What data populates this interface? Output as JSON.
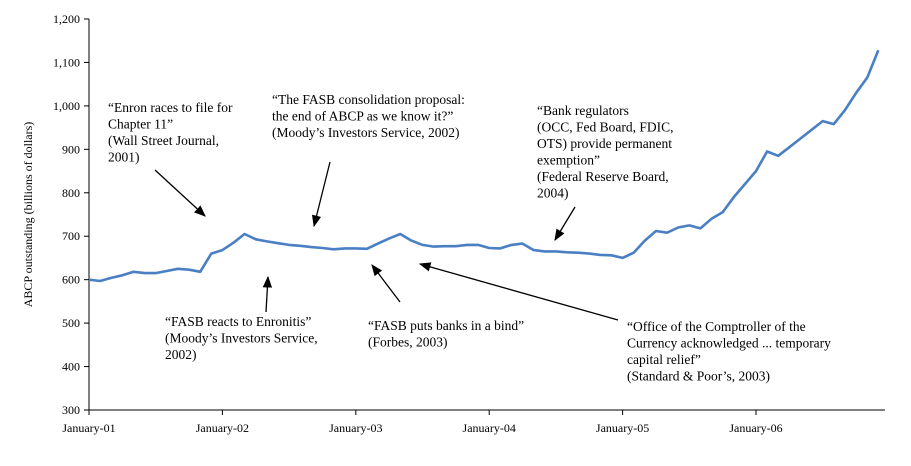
{
  "chart_data": {
    "type": "line",
    "ylabel": "ABCP outstanding (billions of dollars)",
    "xlabel": "",
    "ylim": [
      300,
      1200
    ],
    "yticks": [
      300,
      400,
      500,
      600,
      700,
      800,
      900,
      1000,
      1100,
      1200
    ],
    "ytick_labels": [
      "300",
      "400",
      "500",
      "600",
      "700",
      "800",
      "900",
      "1,000",
      "1,100",
      "1,200"
    ],
    "xticks": [
      "January-01",
      "January-02",
      "January-03",
      "January-04",
      "January-05",
      "January-06"
    ],
    "grid": false,
    "series": [
      {
        "color": "#4a7fc4",
        "x": [
          "2001-01",
          "2001-02",
          "2001-03",
          "2001-04",
          "2001-05",
          "2001-06",
          "2001-07",
          "2001-08",
          "2001-09",
          "2001-10",
          "2001-11",
          "2001-12",
          "2002-01",
          "2002-02",
          "2002-03",
          "2002-04",
          "2002-05",
          "2002-06",
          "2002-07",
          "2002-08",
          "2002-09",
          "2002-10",
          "2002-11",
          "2002-12",
          "2003-01",
          "2003-02",
          "2003-03",
          "2003-04",
          "2003-05",
          "2003-06",
          "2003-07",
          "2003-08",
          "2003-09",
          "2003-10",
          "2003-11",
          "2003-12",
          "2004-01",
          "2004-02",
          "2004-03",
          "2004-04",
          "2004-05",
          "2004-06",
          "2004-07",
          "2004-08",
          "2004-09",
          "2004-10",
          "2004-11",
          "2004-12",
          "2005-01",
          "2005-02",
          "2005-03",
          "2005-04",
          "2005-05",
          "2005-06",
          "2005-07",
          "2005-08",
          "2005-09",
          "2005-10",
          "2005-11",
          "2005-12",
          "2006-01",
          "2006-02",
          "2006-03",
          "2006-04",
          "2006-05",
          "2006-06",
          "2006-07",
          "2006-08",
          "2006-09",
          "2006-10",
          "2006-11",
          "2006-12"
        ],
        "values": [
          600,
          597,
          604,
          610,
          618,
          615,
          615,
          620,
          625,
          623,
          618,
          660,
          668,
          685,
          705,
          693,
          688,
          684,
          680,
          678,
          675,
          673,
          670,
          672,
          672,
          671,
          683,
          695,
          705,
          690,
          680,
          676,
          677,
          677,
          680,
          680,
          673,
          672,
          680,
          683,
          668,
          665,
          665,
          663,
          662,
          660,
          657,
          656,
          650,
          662,
          690,
          712,
          708,
          720,
          725,
          718,
          740,
          755,
          790,
          820,
          850,
          895,
          885,
          905,
          925,
          945,
          965,
          958,
          990,
          1030,
          1065,
          1128
        ]
      }
    ],
    "annotations": [
      {
        "lines": [
          "“Enron races to file for",
          "Chapter 11”",
          "(Wall Street Journal,",
          "2001)"
        ]
      },
      {
        "lines": [
          "“The FASB consolidation proposal:",
          "the end of ABCP as we know it?”",
          "(Moody’s Investors Service, 2002)"
        ]
      },
      {
        "lines": [
          "“Bank regulators",
          "(OCC, Fed Board, FDIC,",
          "OTS) provide permanent",
          "exemption”",
          "(Federal Reserve Board,",
          "2004)"
        ]
      },
      {
        "lines": [
          "“FASB reacts to Enronitis”",
          "(Moody’s Investors Service,",
          "2002)"
        ]
      },
      {
        "lines": [
          "“FASB puts banks in a bind”",
          "(Forbes, 2003)"
        ]
      },
      {
        "lines": [
          "“Office of the Comptroller of the",
          "Currency acknowledged ... temporary",
          "capital relief”",
          "(Standard & Poor’s, 2003)"
        ]
      }
    ]
  }
}
